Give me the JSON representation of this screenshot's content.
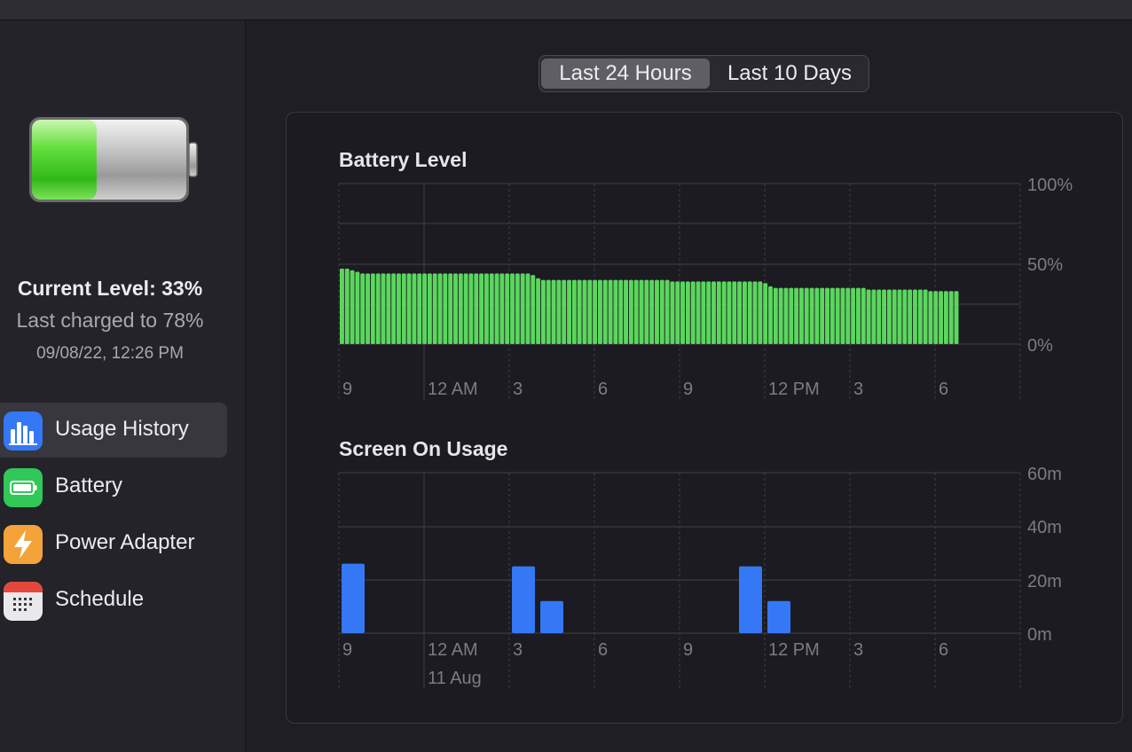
{
  "sidebar": {
    "battery_icon": "battery-graphic",
    "battery_fill_fraction": 0.33,
    "current_level": "Current Level: 33%",
    "last_charged": "Last charged to 78%",
    "charged_date": "09/08/22, 12:26 PM",
    "items": [
      {
        "label": "Usage History",
        "icon": "chart-bars-icon",
        "selected": true,
        "color": "#3478f6"
      },
      {
        "label": "Battery",
        "icon": "battery-icon",
        "selected": false,
        "color": "#32c759"
      },
      {
        "label": "Power Adapter",
        "icon": "lightning-icon",
        "selected": false,
        "color": "#f3a33a"
      },
      {
        "label": "Schedule",
        "icon": "calendar-icon",
        "selected": false,
        "color": "#e9e9eb"
      }
    ]
  },
  "range_control": {
    "options": [
      "Last 24 Hours",
      "Last 10 Days"
    ],
    "selected": "Last 24 Hours"
  },
  "colors": {
    "battery_bar": "#5bd65e",
    "screen_bar": "#3478f6",
    "grid": "#3a3940",
    "axis_text": "#7c7b82"
  },
  "chart_data": [
    {
      "type": "bar",
      "title": "Battery Level",
      "y_ticks": [
        "100%",
        "50%",
        "0%"
      ],
      "ylim": [
        0,
        100
      ],
      "x_tick_labels": [
        "9",
        "12 AM",
        "3",
        "6",
        "9",
        "12 PM",
        "3",
        "6"
      ],
      "values": [
        47,
        47,
        46,
        45,
        44,
        44,
        44,
        44,
        44,
        44,
        44,
        44,
        44,
        44,
        44,
        44,
        44,
        44,
        44,
        44,
        44,
        44,
        44,
        44,
        44,
        44,
        44,
        44,
        44,
        44,
        44,
        44,
        44,
        44,
        44,
        44,
        44,
        43,
        41,
        40,
        40,
        40,
        40,
        40,
        40,
        40,
        40,
        40,
        40,
        40,
        40,
        40,
        40,
        40,
        40,
        40,
        40,
        40,
        40,
        40,
        40,
        40,
        40,
        40,
        39,
        39,
        39,
        39,
        39,
        39,
        39,
        39,
        39,
        39,
        39,
        39,
        39,
        39,
        39,
        39,
        39,
        39,
        38,
        36,
        35,
        35,
        35,
        35,
        35,
        35,
        35,
        35,
        35,
        35,
        35,
        35,
        35,
        35,
        35,
        35,
        35,
        35,
        34,
        34,
        34,
        34,
        34,
        34,
        34,
        34,
        34,
        34,
        34,
        34,
        33,
        33,
        33,
        33,
        33,
        33
      ]
    },
    {
      "type": "bar",
      "title": "Screen On Usage",
      "y_ticks": [
        "60m",
        "40m",
        "20m",
        "0m"
      ],
      "ylim": [
        0,
        60
      ],
      "x_tick_labels": [
        "9",
        "12 AM",
        "3",
        "6",
        "9",
        "12 PM",
        "3",
        "6"
      ],
      "date_label": "11 Aug",
      "values": [
        26,
        0,
        0,
        0,
        0,
        0,
        25,
        12,
        0,
        0,
        0,
        0,
        0,
        0,
        25,
        12,
        0,
        0,
        0,
        0,
        0,
        0,
        0,
        0
      ]
    }
  ]
}
